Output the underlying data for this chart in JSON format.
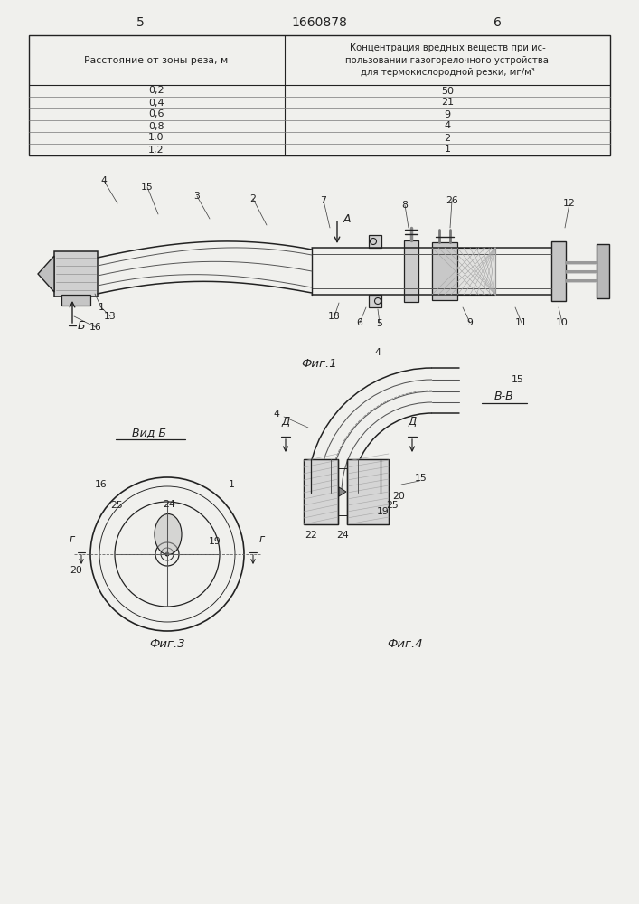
{
  "bg_color": "#f0f0ed",
  "line_color": "#222222",
  "page_num_left": "5",
  "page_num_center": "1660878",
  "page_num_right": "6",
  "table": {
    "col1_header": "Расстояние от зоны реза, м",
    "col2_header": "Концентрация вредных веществ при ис-\nпользовании газогорелочного устройства\nдля термокислородной резки, мг/м³",
    "rows": [
      [
        "0,2",
        "50"
      ],
      [
        "0,4",
        "21"
      ],
      [
        "0,6",
        "9"
      ],
      [
        "0,8",
        "4"
      ],
      [
        "1,0",
        "2"
      ],
      [
        "1,2",
        "1"
      ]
    ]
  },
  "fig1_caption": "Фиг.1",
  "fig3_caption": "Фиг.3",
  "fig4_caption": "Фиг.4",
  "vid_b_label": "Вид Б",
  "vv_label": "В-В"
}
